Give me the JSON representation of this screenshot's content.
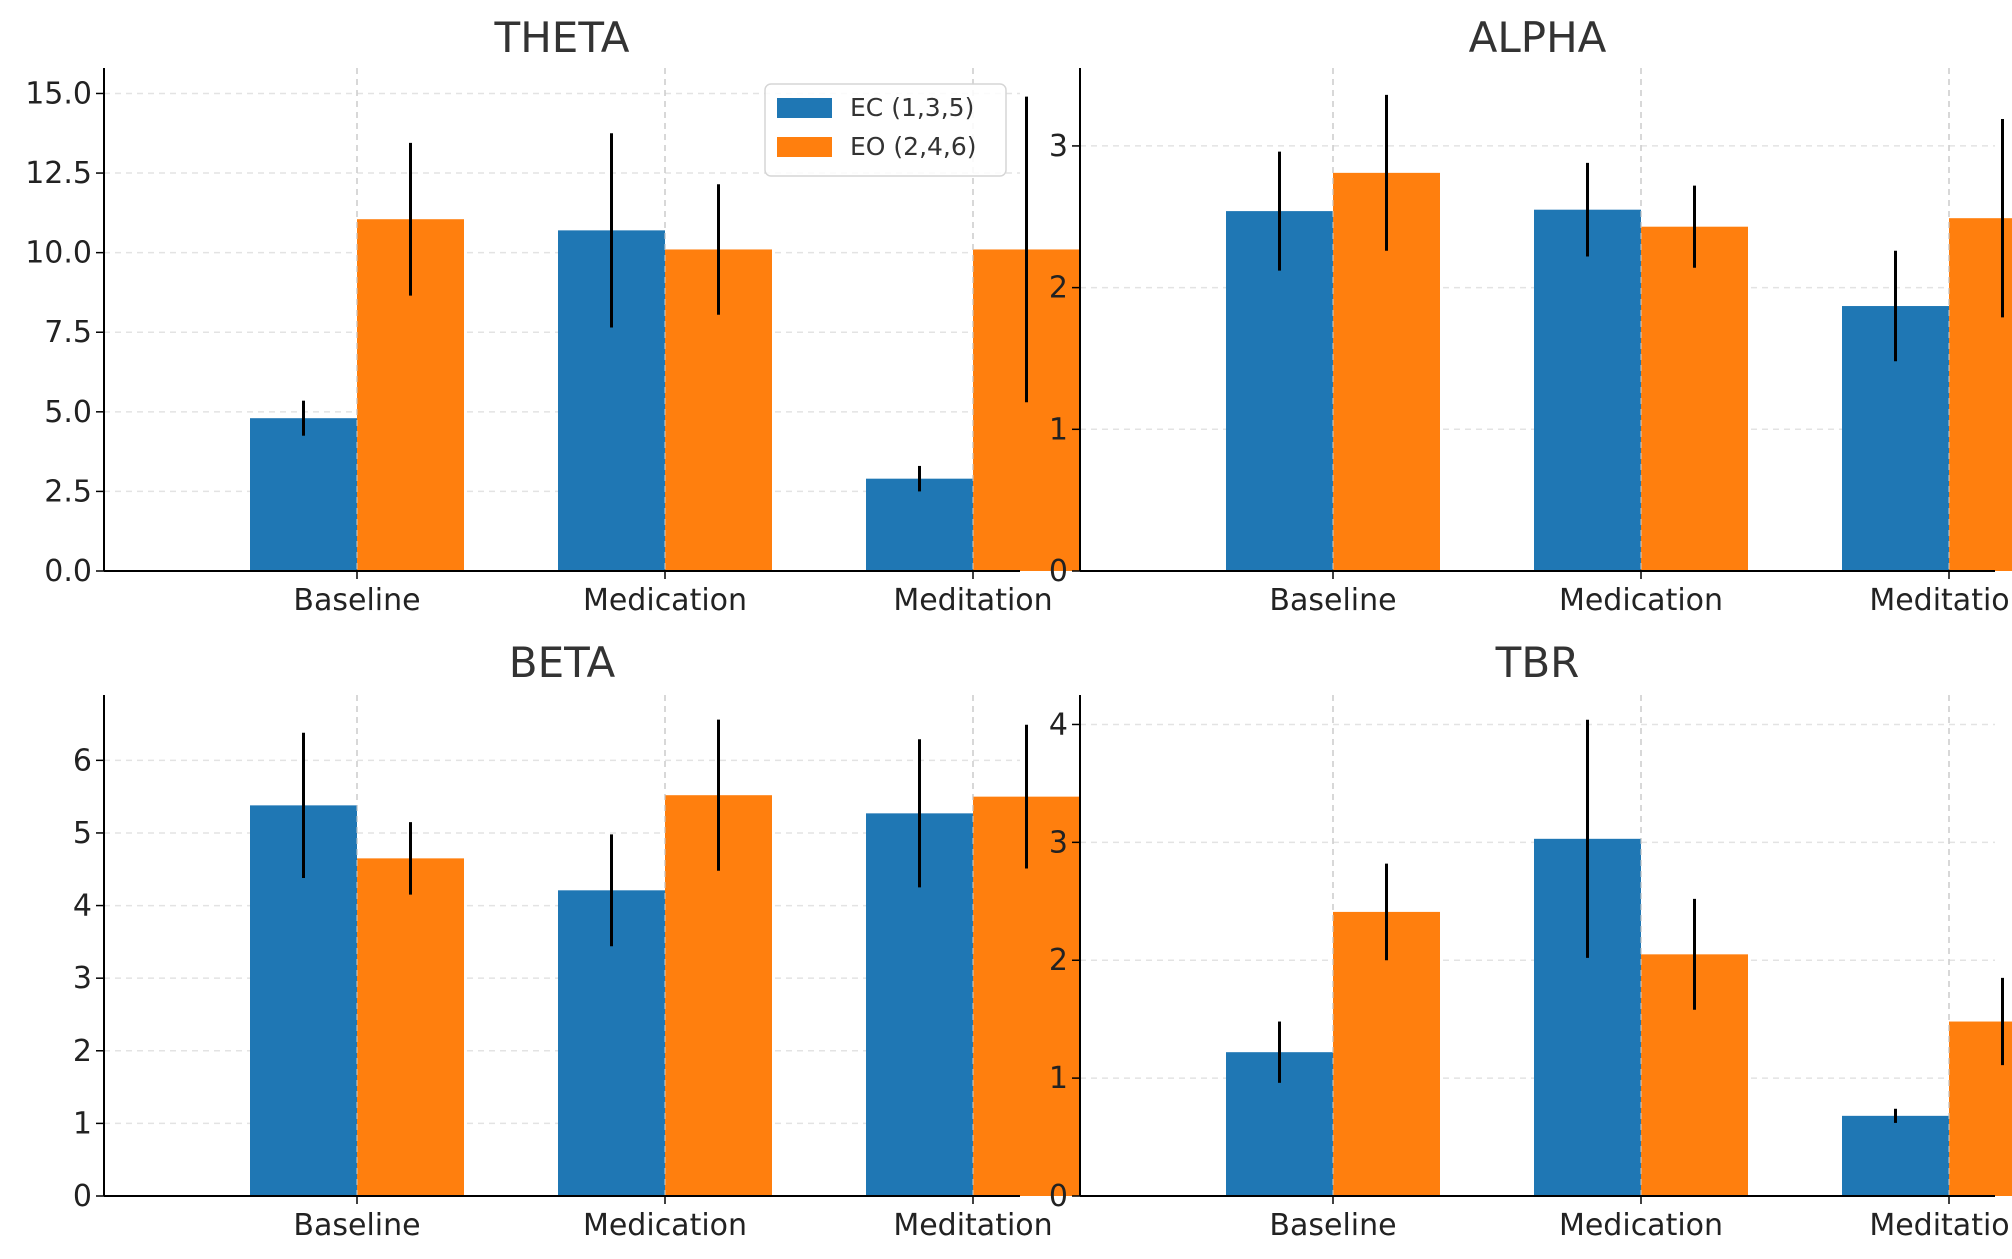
{
  "chart_data": [
    {
      "type": "bar",
      "title": "THETA",
      "categories": [
        "Baseline",
        "Medication",
        "Meditation"
      ],
      "yticks": [
        "0.0",
        "2.5",
        "5.0",
        "7.5",
        "10.0",
        "12.5",
        "15.0"
      ],
      "ylim": [
        0,
        15.8
      ],
      "xlabel": "",
      "ylabel": "",
      "grid": true,
      "series": [
        {
          "name": "EC (1,3,5)",
          "color": "#1f77b4",
          "values": [
            4.8,
            10.7,
            2.9
          ],
          "errors": [
            0.55,
            3.05,
            0.4
          ]
        },
        {
          "name": "EO (2,4,6)",
          "color": "#ff7f0e",
          "values": [
            11.05,
            10.1,
            10.1
          ],
          "errors": [
            2.4,
            2.05,
            4.8
          ]
        }
      ],
      "legend": {
        "show": true,
        "position": "upper-right"
      }
    },
    {
      "type": "bar",
      "title": "ALPHA",
      "categories": [
        "Baseline",
        "Medication",
        "Meditation"
      ],
      "yticks": [
        "0",
        "1",
        "2",
        "3"
      ],
      "ylim": [
        0,
        3.55
      ],
      "xlabel": "",
      "ylabel": "",
      "grid": true,
      "series": [
        {
          "name": "EC (1,3,5)",
          "color": "#1f77b4",
          "values": [
            2.54,
            2.55,
            1.87
          ],
          "errors": [
            0.42,
            0.33,
            0.39
          ]
        },
        {
          "name": "EO (2,4,6)",
          "color": "#ff7f0e",
          "values": [
            2.81,
            2.43,
            2.49
          ],
          "errors": [
            0.55,
            0.29,
            0.7
          ]
        }
      ],
      "legend": {
        "show": false
      }
    },
    {
      "type": "bar",
      "title": "BETA",
      "categories": [
        "Baseline",
        "Medication",
        "Meditation"
      ],
      "yticks": [
        "0",
        "1",
        "2",
        "3",
        "4",
        "5",
        "6"
      ],
      "ylim": [
        0,
        6.9
      ],
      "xlabel": "",
      "ylabel": "",
      "grid": true,
      "series": [
        {
          "name": "EC (1,3,5)",
          "color": "#1f77b4",
          "values": [
            5.38,
            4.21,
            5.27
          ],
          "errors": [
            1.0,
            0.77,
            1.02
          ]
        },
        {
          "name": "EO (2,4,6)",
          "color": "#ff7f0e",
          "values": [
            4.65,
            5.52,
            5.5
          ],
          "errors": [
            0.5,
            1.04,
            0.99
          ]
        }
      ],
      "legend": {
        "show": false
      }
    },
    {
      "type": "bar",
      "title": "TBR",
      "categories": [
        "Baseline",
        "Medication",
        "Meditation"
      ],
      "yticks": [
        "0",
        "1",
        "2",
        "3",
        "4"
      ],
      "ylim": [
        0,
        4.25
      ],
      "xlabel": "",
      "ylabel": "",
      "grid": true,
      "series": [
        {
          "name": "EC (1,3,5)",
          "color": "#1f77b4",
          "values": [
            1.22,
            3.03,
            0.68
          ],
          "errors": [
            0.26,
            1.01,
            0.06
          ]
        },
        {
          "name": "EO (2,4,6)",
          "color": "#ff7f0e",
          "values": [
            2.41,
            2.05,
            1.48
          ],
          "errors": [
            0.41,
            0.47,
            0.37
          ]
        }
      ],
      "legend": {
        "show": false
      }
    }
  ]
}
